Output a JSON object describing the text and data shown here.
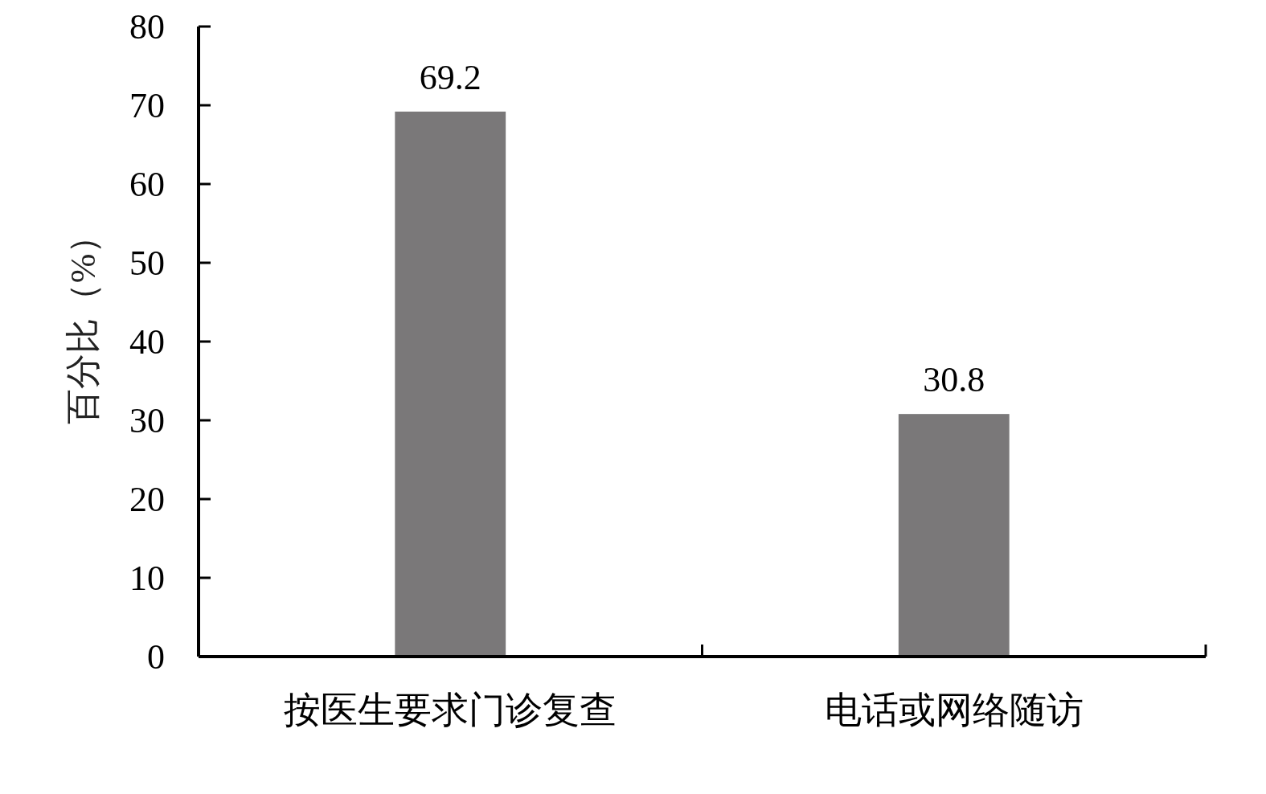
{
  "chart_data": {
    "type": "bar",
    "ylabel": "百分比（%）",
    "categories": [
      "按医生要求门诊复查",
      "电话或网络随访"
    ],
    "values": [
      69.2,
      30.8
    ],
    "color": "#7a7879",
    "ylim": [
      0,
      80
    ],
    "yticks": [
      0,
      10,
      20,
      30,
      40,
      50,
      60,
      70,
      80
    ],
    "data_labels": true,
    "grid": false
  }
}
